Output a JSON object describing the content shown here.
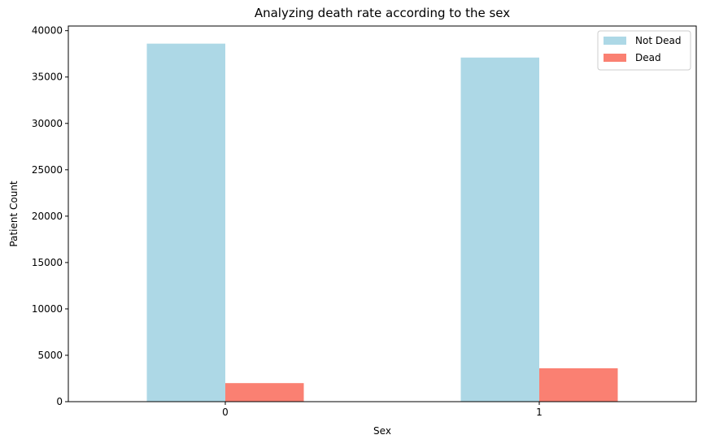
{
  "chart_data": {
    "type": "bar",
    "title": "Analyzing death rate according to the sex",
    "xlabel": "Sex",
    "ylabel": "Patient Count",
    "categories": [
      "0",
      "1"
    ],
    "series": [
      {
        "name": "Not Dead",
        "values": [
          38600,
          37100
        ],
        "color": "#add8e6"
      },
      {
        "name": "Dead",
        "values": [
          2000,
          3600
        ],
        "color": "#fa8072"
      }
    ],
    "ylim": [
      0,
      40500
    ],
    "yticks": [
      0,
      5000,
      10000,
      15000,
      20000,
      25000,
      30000,
      35000,
      40000
    ],
    "grid": false,
    "legend_position": "top-right"
  }
}
